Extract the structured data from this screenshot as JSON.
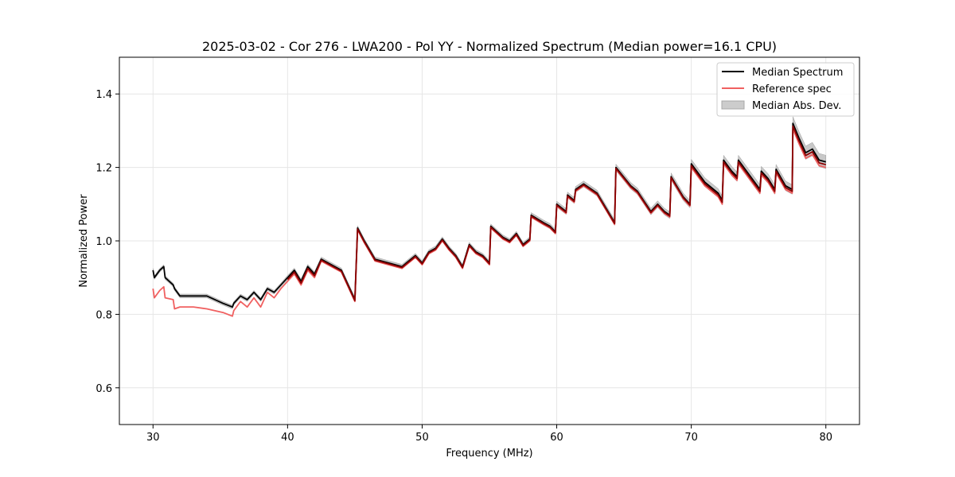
{
  "chart_data": {
    "type": "line",
    "title": "2025-03-02 - Cor 276 - LWA200 - Pol YY - Normalized Spectrum (Median power=16.1 CPU)",
    "xlabel": "Frequency (MHz)",
    "ylabel": "Normalized Power",
    "xlim": [
      27.5,
      82.5
    ],
    "ylim": [
      0.5,
      1.5
    ],
    "xticks": [
      30,
      40,
      50,
      60,
      70,
      80
    ],
    "yticks": [
      0.6,
      0.8,
      1.0,
      1.2,
      1.4
    ],
    "xtick_labels": [
      "30",
      "40",
      "50",
      "60",
      "70",
      "80"
    ],
    "ytick_labels": [
      "0.6",
      "0.8",
      "1.0",
      "1.2",
      "1.4"
    ],
    "grid": true,
    "legend_position": "top-right",
    "legend": [
      "Median Spectrum",
      "Reference spec",
      "Median Abs. Dev."
    ],
    "colors": {
      "median": "#000000",
      "reference": "#f06060",
      "overlap": "#8b0000",
      "mad": "#b0b0b0"
    },
    "series": [
      {
        "name": "Median Spectrum",
        "x": [
          30.0,
          30.1,
          30.5,
          30.8,
          30.9,
          31.5,
          31.6,
          32.0,
          33.0,
          34.0,
          35.2,
          35.9,
          36.0,
          36.5,
          37.0,
          37.5,
          38.0,
          38.5,
          39.0,
          39.5,
          40.0,
          40.5,
          41.0,
          41.5,
          42.0,
          42.5,
          43.0,
          44.0,
          44.5,
          45.0,
          45.2,
          45.7,
          46.5,
          47.5,
          48.5,
          49.5,
          50.0,
          50.5,
          51.0,
          51.5,
          52.0,
          52.5,
          53.0,
          53.5,
          54.0,
          54.5,
          55.0,
          55.1,
          56.0,
          56.5,
          57.0,
          57.5,
          58.0,
          58.1,
          59.0,
          59.5,
          59.9,
          60.0,
          60.7,
          60.8,
          61.3,
          61.4,
          62.0,
          63.0,
          64.3,
          64.4,
          65.5,
          66.0,
          67.0,
          67.5,
          68.0,
          68.4,
          68.5,
          69.4,
          69.9,
          70.0,
          71.0,
          72.0,
          72.3,
          72.4,
          73.0,
          73.4,
          73.5,
          74.5,
          75.1,
          75.2,
          75.7,
          76.2,
          76.3,
          77.0,
          77.5,
          77.55,
          78.0,
          78.5,
          79.0,
          79.5,
          80.0
        ],
        "y": [
          0.92,
          0.9,
          0.92,
          0.93,
          0.9,
          0.88,
          0.87,
          0.85,
          0.85,
          0.85,
          0.83,
          0.82,
          0.83,
          0.85,
          0.84,
          0.86,
          0.84,
          0.87,
          0.86,
          0.88,
          0.9,
          0.92,
          0.89,
          0.93,
          0.91,
          0.95,
          0.94,
          0.92,
          0.88,
          0.84,
          1.035,
          1.0,
          0.95,
          0.94,
          0.93,
          0.96,
          0.94,
          0.97,
          0.98,
          1.005,
          0.98,
          0.96,
          0.93,
          0.99,
          0.97,
          0.96,
          0.94,
          1.04,
          1.01,
          1.0,
          1.02,
          0.99,
          1.005,
          1.07,
          1.05,
          1.04,
          1.025,
          1.1,
          1.08,
          1.125,
          1.11,
          1.14,
          1.155,
          1.13,
          1.05,
          1.2,
          1.15,
          1.135,
          1.08,
          1.1,
          1.08,
          1.07,
          1.175,
          1.12,
          1.1,
          1.21,
          1.16,
          1.13,
          1.11,
          1.22,
          1.19,
          1.175,
          1.22,
          1.17,
          1.14,
          1.19,
          1.17,
          1.14,
          1.195,
          1.15,
          1.14,
          1.32,
          1.28,
          1.24,
          1.25,
          1.22,
          1.215
        ]
      },
      {
        "name": "Reference spec",
        "x": [
          30.0,
          30.1,
          30.5,
          30.8,
          30.9,
          31.5,
          31.6,
          32.0,
          33.0,
          34.0,
          35.2,
          35.9,
          36.0,
          36.5,
          37.0,
          37.5,
          38.0,
          38.5,
          39.0,
          39.5,
          40.0,
          40.5,
          41.0,
          41.5,
          42.0,
          42.5,
          43.0,
          44.0,
          44.5,
          45.0,
          45.2,
          45.7,
          46.5,
          47.5,
          48.5,
          49.5,
          50.0,
          50.5,
          51.0,
          51.5,
          52.0,
          52.5,
          53.0,
          53.5,
          54.0,
          54.5,
          55.0,
          55.1,
          56.0,
          56.5,
          57.0,
          57.5,
          58.0,
          58.1,
          59.0,
          59.5,
          59.9,
          60.0,
          60.7,
          60.8,
          61.3,
          61.4,
          62.0,
          63.0,
          64.3,
          64.4,
          65.5,
          66.0,
          67.0,
          67.5,
          68.0,
          68.4,
          68.5,
          69.4,
          69.9,
          70.0,
          71.0,
          72.0,
          72.3,
          72.4,
          73.0,
          73.4,
          73.5,
          74.5,
          75.1,
          75.2,
          75.7,
          76.2,
          76.3,
          77.0,
          77.5,
          77.55,
          78.0,
          78.5,
          79.0,
          79.5,
          80.0
        ],
        "y": [
          0.87,
          0.845,
          0.865,
          0.875,
          0.845,
          0.84,
          0.815,
          0.82,
          0.82,
          0.815,
          0.805,
          0.795,
          0.81,
          0.835,
          0.82,
          0.845,
          0.82,
          0.86,
          0.845,
          0.87,
          0.89,
          0.91,
          0.88,
          0.92,
          0.9,
          0.945,
          0.935,
          0.915,
          0.875,
          0.835,
          1.03,
          0.995,
          0.945,
          0.935,
          0.925,
          0.955,
          0.935,
          0.965,
          0.975,
          1.0,
          0.975,
          0.955,
          0.925,
          0.985,
          0.965,
          0.955,
          0.935,
          1.035,
          1.005,
          0.995,
          1.015,
          0.985,
          1.0,
          1.065,
          1.045,
          1.035,
          1.02,
          1.095,
          1.075,
          1.12,
          1.105,
          1.135,
          1.15,
          1.125,
          1.045,
          1.195,
          1.145,
          1.13,
          1.075,
          1.095,
          1.075,
          1.065,
          1.17,
          1.115,
          1.095,
          1.2,
          1.15,
          1.12,
          1.1,
          1.21,
          1.18,
          1.165,
          1.21,
          1.16,
          1.13,
          1.18,
          1.16,
          1.13,
          1.185,
          1.14,
          1.13,
          1.305,
          1.265,
          1.225,
          1.235,
          1.205,
          1.2
        ]
      }
    ],
    "mad_halfwidth": [
      0.005,
      0.005,
      0.005,
      0.005,
      0.005,
      0.005,
      0.005,
      0.005,
      0.005,
      0.005,
      0.005,
      0.005,
      0.005,
      0.005,
      0.005,
      0.005,
      0.005,
      0.005,
      0.005,
      0.005,
      0.006,
      0.006,
      0.006,
      0.006,
      0.006,
      0.006,
      0.006,
      0.006,
      0.006,
      0.006,
      0.006,
      0.006,
      0.006,
      0.006,
      0.006,
      0.006,
      0.006,
      0.006,
      0.006,
      0.006,
      0.006,
      0.006,
      0.006,
      0.006,
      0.006,
      0.006,
      0.006,
      0.006,
      0.006,
      0.006,
      0.006,
      0.006,
      0.006,
      0.007,
      0.007,
      0.007,
      0.007,
      0.008,
      0.008,
      0.008,
      0.008,
      0.008,
      0.008,
      0.008,
      0.008,
      0.009,
      0.009,
      0.009,
      0.009,
      0.009,
      0.009,
      0.009,
      0.01,
      0.01,
      0.01,
      0.012,
      0.012,
      0.012,
      0.012,
      0.013,
      0.013,
      0.013,
      0.013,
      0.013,
      0.013,
      0.013,
      0.013,
      0.013,
      0.013,
      0.013,
      0.013,
      0.018,
      0.018,
      0.018,
      0.018,
      0.018,
      0.018
    ]
  }
}
